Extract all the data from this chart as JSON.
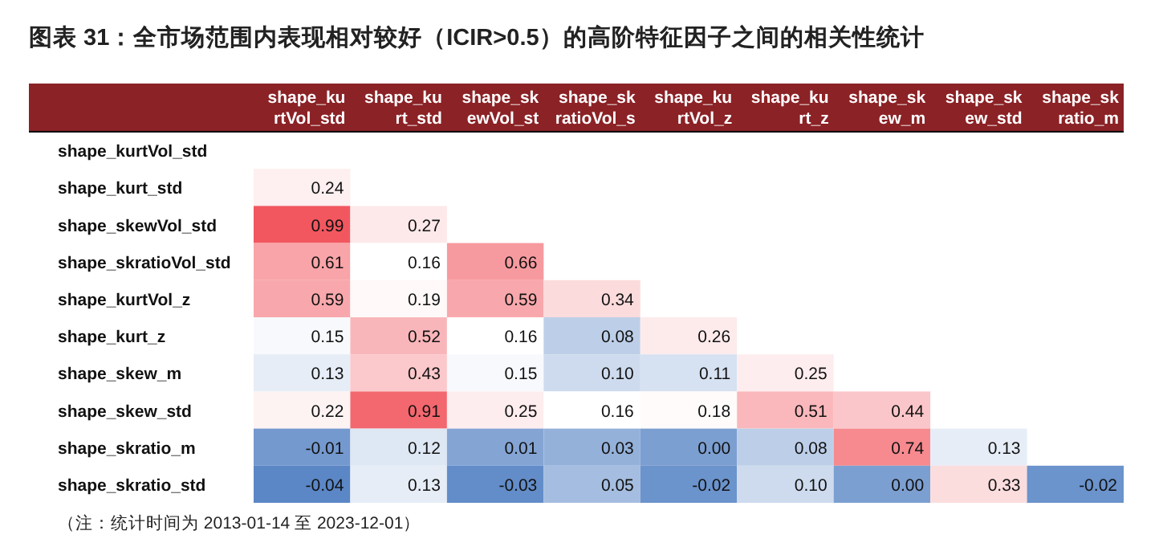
{
  "chart_data": {
    "type": "heatmap",
    "title": "图表 31：全市场范围内表现相对较好（ICIR>0.5）的高阶特征因子之间的相关性统计",
    "categories": [
      "shape_kurtVol_std",
      "shape_kurt_std",
      "shape_skewVol_st",
      "shape_skratioVol_s",
      "shape_kurtVol_z",
      "shape_kurt_z",
      "shape_skew_m",
      "shape_skew_std",
      "shape_skratio_m"
    ],
    "y_categories": [
      "shape_kurtVol_std",
      "shape_kurt_std",
      "shape_skewVol_std",
      "shape_skratioVol_std",
      "shape_kurtVol_z",
      "shape_kurt_z",
      "shape_skew_m",
      "shape_skew_std",
      "shape_skratio_m",
      "shape_skratio_std"
    ],
    "cells": [
      [
        null,
        null,
        null,
        null,
        null,
        null,
        null,
        null,
        null
      ],
      [
        0.24,
        null,
        null,
        null,
        null,
        null,
        null,
        null,
        null
      ],
      [
        0.99,
        0.27,
        null,
        null,
        null,
        null,
        null,
        null,
        null
      ],
      [
        0.61,
        0.16,
        0.66,
        null,
        null,
        null,
        null,
        null,
        null
      ],
      [
        0.59,
        0.19,
        0.59,
        0.34,
        null,
        null,
        null,
        null,
        null
      ],
      [
        0.15,
        0.52,
        0.16,
        0.08,
        0.26,
        null,
        null,
        null,
        null
      ],
      [
        0.13,
        0.43,
        0.15,
        0.1,
        0.11,
        0.25,
        null,
        null,
        null
      ],
      [
        0.22,
        0.91,
        0.25,
        0.16,
        0.18,
        0.51,
        0.44,
        null,
        null
      ],
      [
        -0.01,
        0.12,
        0.01,
        0.03,
        0.0,
        0.08,
        0.74,
        0.13,
        null
      ],
      [
        -0.04,
        0.13,
        -0.03,
        0.05,
        -0.02,
        0.1,
        0.0,
        0.33,
        -0.02
      ]
    ],
    "cell_labels": [
      [
        null,
        null,
        null,
        null,
        null,
        null,
        null,
        null,
        null
      ],
      [
        "0.24",
        null,
        null,
        null,
        null,
        null,
        null,
        null,
        null
      ],
      [
        "0.99",
        "0.27",
        null,
        null,
        null,
        null,
        null,
        null,
        null
      ],
      [
        "0.61",
        "0.16",
        "0.66",
        null,
        null,
        null,
        null,
        null,
        null
      ],
      [
        "0.59",
        "0.19",
        "0.59",
        "0.34",
        null,
        null,
        null,
        null,
        null
      ],
      [
        "0.15",
        "0.52",
        "0.16",
        "0.08",
        "0.26",
        null,
        null,
        null,
        null
      ],
      [
        "0.13",
        "0.43",
        "0.15",
        "0.10",
        "0.11",
        "0.25",
        null,
        null,
        null
      ],
      [
        "0.22",
        "0.91",
        "0.25",
        "0.16",
        "0.18",
        "0.51",
        "0.44",
        null,
        null
      ],
      [
        "-0.01",
        "0.12",
        "0.01",
        "0.03",
        "0.00",
        "0.08",
        "0.74",
        "0.13",
        null
      ],
      [
        "-0.04",
        "0.13",
        "-0.03",
        "0.05",
        "-0.02",
        "0.10",
        "0.00",
        "0.33",
        "-0.02"
      ]
    ],
    "annotations": [
      "（注：统计时间为 2013-01-14 至 2023-12-01）"
    ]
  }
}
